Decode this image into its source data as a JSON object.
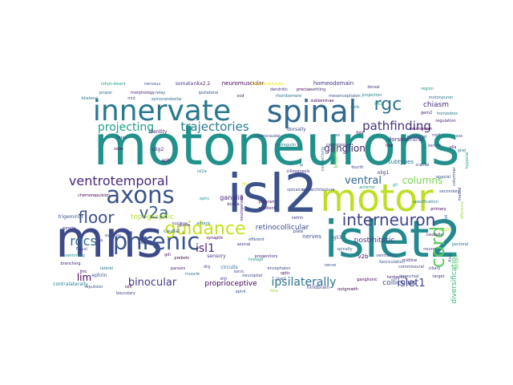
{
  "words": [
    {
      "text": "motoneurons",
      "color": "#21918c"
    },
    {
      "text": "isl2",
      "color": "#3b528b"
    },
    {
      "text": "islet2",
      "color": "#23898e"
    },
    {
      "text": "mns",
      "color": "#3e4989"
    },
    {
      "text": "motor",
      "color": "#bddf26"
    },
    {
      "text": "spinal",
      "color": "#31688e"
    },
    {
      "text": "innervate",
      "color": "#2a788e"
    },
    {
      "text": "axons",
      "color": "#3b528b"
    },
    {
      "text": "phrenic",
      "color": "#39568c"
    },
    {
      "text": "interneuron",
      "color": "#414487"
    },
    {
      "text": "guidance",
      "color": "#c8e020"
    },
    {
      "text": "floor",
      "color": "#3b528b"
    },
    {
      "text": "cord",
      "color": "#5ec962"
    },
    {
      "text": "rgc",
      "color": "#2c728e"
    },
    {
      "text": "v2a",
      "color": "#35608d"
    },
    {
      "text": "ventrotemporal",
      "color": "#482878"
    },
    {
      "text": "pathfinding",
      "color": "#46337f"
    },
    {
      "text": "trajectories",
      "color": "#287d8e"
    },
    {
      "text": "projecting",
      "color": "#1f9e89"
    },
    {
      "text": "ganglion",
      "color": "#472d7b"
    },
    {
      "text": "ventral",
      "color": "#33638d"
    },
    {
      "text": "columns",
      "color": "#7ad151"
    },
    {
      "text": "rgcs",
      "color": "#31688e"
    },
    {
      "text": "lim",
      "color": "#440154"
    },
    {
      "text": "binocular",
      "color": "#443983"
    },
    {
      "text": "ipsilaterally",
      "color": "#2d708e"
    },
    {
      "text": "islet1",
      "color": "#3f4788"
    },
    {
      "text": "isl1",
      "color": "#482475"
    },
    {
      "text": "topographic",
      "color": "#b5de2b"
    },
    {
      "text": "chiasm",
      "color": "#472c7a"
    },
    {
      "text": "postmitotic",
      "color": "#453882"
    },
    {
      "text": "diversification",
      "color": "#35b779"
    },
    {
      "text": "colliculus",
      "color": "#3f4889"
    },
    {
      "text": "proprioceptive",
      "color": "#440154"
    },
    {
      "text": "retinocollicular",
      "color": "#3e4a89"
    },
    {
      "text": "ganglia",
      "color": "#482576"
    },
    {
      "text": "neuromuscular",
      "color": "#440154"
    },
    {
      "text": "homeodomain",
      "color": "#46327e"
    },
    {
      "text": "dorsoventral",
      "color": "#482878"
    },
    {
      "text": "subtypes",
      "color": "#2a788e"
    },
    {
      "text": "nerves",
      "color": "#3b528b"
    },
    {
      "text": "v2b",
      "color": "#440154"
    },
    {
      "text": "hindbrain",
      "color": "#404688"
    },
    {
      "text": "dorsally",
      "color": "#3e4a89"
    },
    {
      "text": "somata",
      "color": "#424086"
    },
    {
      "text": "nkx2.2",
      "color": "#471365"
    },
    {
      "text": "olig2",
      "color": "#482677"
    },
    {
      "text": "olig1",
      "color": "#46337f"
    },
    {
      "text": "eph",
      "color": "#470e61"
    },
    {
      "text": "ephrin",
      "color": "#3b528b"
    },
    {
      "text": "caudal",
      "color": "#365c8d"
    },
    {
      "text": "sensory",
      "color": "#453781"
    },
    {
      "text": "circuits",
      "color": "#2e6e8e"
    },
    {
      "text": "netrin",
      "color": "#46307e"
    },
    {
      "text": "plate",
      "color": "#3e4a89"
    },
    {
      "text": "gli3",
      "color": "#3f4788"
    },
    {
      "text": "bcn3a",
      "color": "#482071"
    },
    {
      "text": "nerve",
      "color": "#3c508b"
    },
    {
      "text": "commissural",
      "color": "#414487"
    },
    {
      "text": "midline",
      "color": "#481f70"
    },
    {
      "text": "contralaterally",
      "color": "#26828e"
    },
    {
      "text": "trigeminal",
      "color": "#3b528b"
    },
    {
      "text": "identity",
      "color": "#482173"
    },
    {
      "text": "rostrocaudal",
      "color": "#3e4989"
    },
    {
      "text": "drg",
      "color": "#433e85"
    },
    {
      "text": "prebotc",
      "color": "#440154"
    },
    {
      "text": "lateral",
      "color": "#2a768e"
    },
    {
      "text": "isl2a",
      "color": "#27808e"
    },
    {
      "text": "ephs",
      "color": "#1e9b8a"
    },
    {
      "text": "nervous",
      "color": "#3b528b"
    },
    {
      "text": "gdi",
      "color": "#481a6c"
    },
    {
      "text": "cap",
      "color": "#423f85"
    },
    {
      "text": "slit2",
      "color": "#35b779"
    },
    {
      "text": "gli",
      "color": "#20a486"
    },
    {
      "text": "root",
      "color": "#440154"
    },
    {
      "text": "parafacial",
      "color": "#3e4989"
    },
    {
      "text": "fold",
      "color": "#48186a"
    },
    {
      "text": "hedgehog",
      "color": "#482878"
    },
    {
      "text": "shh",
      "color": "#3f4889"
    },
    {
      "text": "sonic",
      "color": "#3f4889"
    },
    {
      "text": "rohon-beard",
      "color": "#1fa187"
    },
    {
      "text": "connectivity",
      "color": "#2e6f8e"
    },
    {
      "text": "breathing",
      "color": "#73d056"
    },
    {
      "text": "neurogenesis",
      "color": "#48186a"
    },
    {
      "text": "ciliogenesis",
      "color": "#46327e"
    },
    {
      "text": "oligodendrocyte",
      "color": "#e5e419"
    },
    {
      "text": "zone",
      "color": "#470d60"
    },
    {
      "text": "branching",
      "color": "#482173"
    },
    {
      "text": "hb",
      "color": "#d8e219"
    },
    {
      "text": "pns",
      "color": "#3b528b"
    },
    {
      "text": "program",
      "color": "#471164"
    },
    {
      "text": "gradient",
      "color": "#482475"
    },
    {
      "text": "neuregulin",
      "color": "#297b8e"
    },
    {
      "text": "spinalcord",
      "color": "#3f4788"
    },
    {
      "text": "vsx",
      "color": "#3b528b"
    },
    {
      "text": "lmc",
      "color": "#440154"
    },
    {
      "text": "cells",
      "color": "#2c728e"
    },
    {
      "text": "fates",
      "color": "#3e4989"
    },
    {
      "text": "afferents",
      "color": "#9fda3a"
    },
    {
      "text": "ciliary",
      "color": "#3f4788"
    },
    {
      "text": "nuclei",
      "color": "#20928c"
    },
    {
      "text": "dorsal",
      "color": "#46327e"
    },
    {
      "text": "sox",
      "color": "#3b528b"
    },
    {
      "text": "sensor",
      "color": "#404688"
    },
    {
      "text": "motoneuron",
      "color": "#2c718e"
    },
    {
      "text": "neuron",
      "color": "#3e4989"
    },
    {
      "text": "region",
      "color": "#1f998a"
    },
    {
      "text": "target",
      "color": "#453781"
    },
    {
      "text": "fasciculation",
      "color": "#3b528b"
    },
    {
      "text": "tectum",
      "color": "#6ece58"
    },
    {
      "text": "optic",
      "color": "#470d60"
    },
    {
      "text": "tract",
      "color": "#3f4788"
    },
    {
      "text": "glia",
      "color": "#482878"
    },
    {
      "text": "roof",
      "color": "#3b528b"
    },
    {
      "text": "glial",
      "color": "#2e6f8e"
    },
    {
      "text": "projection",
      "color": "#25848e"
    },
    {
      "text": "precise",
      "color": "#440154"
    },
    {
      "text": "settling",
      "color": "#46327e"
    },
    {
      "text": "relay",
      "color": "#35608d"
    },
    {
      "text": "spinocerebellar",
      "color": "#2c718e"
    },
    {
      "text": "gem2",
      "color": "#48186a"
    },
    {
      "text": "homeobox",
      "color": "#2a788e"
    },
    {
      "text": "regulation",
      "color": "#481f70"
    },
    {
      "text": "neurogenin",
      "color": "#440154"
    },
    {
      "text": "columnar",
      "color": "#3f4788"
    },
    {
      "text": "cranial",
      "color": "#414487"
    },
    {
      "text": "hypaxial",
      "color": "#1fa187"
    },
    {
      "text": "epaxial",
      "color": "#39568c"
    },
    {
      "text": "medial",
      "color": "#433e85"
    },
    {
      "text": "specification",
      "color": "#2a788e"
    },
    {
      "text": "primary",
      "color": "#440154"
    },
    {
      "text": "secondary",
      "color": "#3b528b"
    },
    {
      "text": "pool",
      "color": "#2c728e"
    },
    {
      "text": "ventralis",
      "color": "#3e4989"
    },
    {
      "text": "tbx20",
      "color": "#b2dd2d"
    },
    {
      "text": "caudally",
      "color": "#482475"
    },
    {
      "text": "fins",
      "color": "#3b528b"
    },
    {
      "text": "pectoral",
      "color": "#2e6e8e"
    },
    {
      "text": "somite",
      "color": "#46327e"
    },
    {
      "text": "swimming",
      "color": "#21918c"
    },
    {
      "text": "larval",
      "color": "#3f4788"
    },
    {
      "text": "superior",
      "color": "#3b528b"
    },
    {
      "text": "chemorepulsion",
      "color": "#440154"
    },
    {
      "text": "proper",
      "color": "#2d708e"
    },
    {
      "text": "guide",
      "color": "#482878"
    },
    {
      "text": "repulsion",
      "color": "#3b528b"
    },
    {
      "text": "cell",
      "color": "#440154"
    },
    {
      "text": "boundary",
      "color": "#3e4989"
    },
    {
      "text": "paraxis",
      "color": "#481f70"
    },
    {
      "text": "muscle",
      "color": "#2c718e"
    },
    {
      "text": "nucleus",
      "color": "#433e85"
    },
    {
      "text": "enteric",
      "color": "#2a788e"
    },
    {
      "text": "synaptic",
      "color": "#440154"
    },
    {
      "text": "efferent",
      "color": "#3b528b"
    },
    {
      "text": "axonal",
      "color": "#46327e"
    },
    {
      "text": "lineage",
      "color": "#1f9e89"
    },
    {
      "text": "encephalon",
      "color": "#3f4788"
    },
    {
      "text": "neuropilar",
      "color": "#3e4989"
    },
    {
      "text": "progenitors",
      "color": "#482878"
    },
    {
      "text": "eph4",
      "color": "#3b528b"
    },
    {
      "text": "outgrowth",
      "color": "#440154"
    },
    {
      "text": "tela",
      "color": "#9bd93c"
    },
    {
      "text": "spinally",
      "color": "#35608d"
    },
    {
      "text": "ganglionic",
      "color": "#440154"
    },
    {
      "text": "branchial",
      "color": "#3e4989"
    },
    {
      "text": "rhombomere",
      "color": "#2c718e"
    },
    {
      "text": "dendritic",
      "color": "#46327e"
    },
    {
      "text": "vcd",
      "color": "#440154"
    },
    {
      "text": "ipsilateral",
      "color": "#3b528b"
    },
    {
      "text": "morphology",
      "color": "#482475"
    },
    {
      "text": "mid",
      "color": "#3e4989"
    },
    {
      "text": "bilateral",
      "color": "#2a788e"
    },
    {
      "text": "sublaminae",
      "color": "#440154"
    },
    {
      "text": "mesencephalon",
      "color": "#3b528b"
    },
    {
      "text": "commissure",
      "color": "#482878"
    },
    {
      "text": "anterior",
      "color": "#1f998a"
    },
    {
      "text": "fourth",
      "color": "#414487"
    },
    {
      "text": "cytoarchitecture",
      "color": "#3f4788"
    },
    {
      "text": "ip",
      "color": "#2e6f8e"
    }
  ]
}
